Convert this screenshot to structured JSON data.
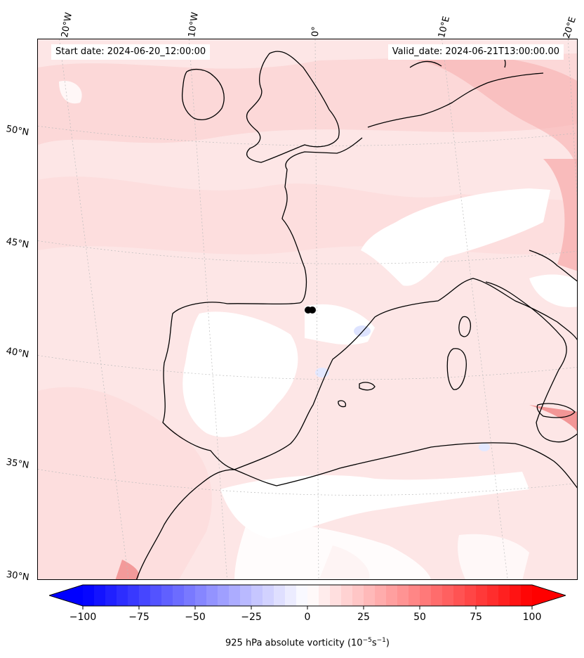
{
  "header": {
    "start_date": "Start date: 2024-06-20_12:00:00",
    "valid_date": "Valid_date: 2024-06-21T13:00:00.00"
  },
  "longitude_labels": [
    "20°W",
    "10°W",
    "0°",
    "10°E",
    "20°E"
  ],
  "latitude_labels": [
    "50°N",
    "45°N",
    "40°N",
    "35°N",
    "30°N"
  ],
  "colorbar": {
    "ticks": [
      "−100",
      "−75",
      "−50",
      "−25",
      "0",
      "25",
      "50",
      "75",
      "100"
    ],
    "min": -100,
    "max": 100,
    "step": 5,
    "title_prefix": "925 hPa absolute vorticity (10",
    "title_exp1": "−5",
    "title_mid": "s",
    "title_exp2": "−1",
    "title_suffix": ")",
    "negative_color": "#0000ff",
    "positive_color": "#ff0000"
  },
  "map_colors": {
    "background": "#fde8e8",
    "land_outline": "#000000",
    "grid": "#bbbbbb"
  }
}
